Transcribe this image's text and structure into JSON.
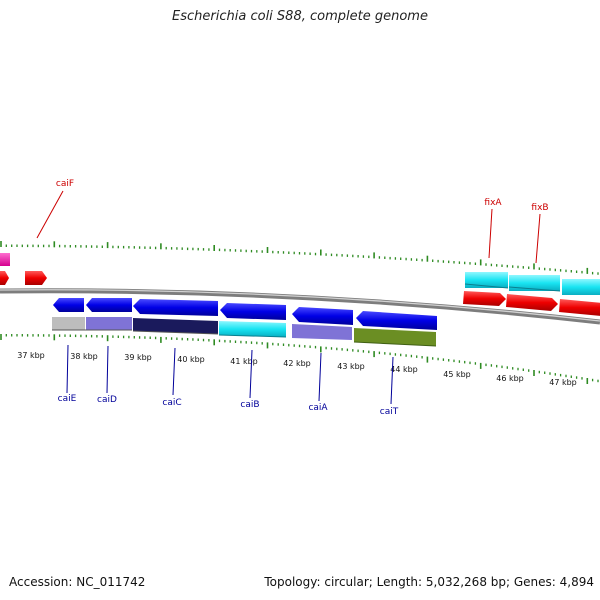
{
  "title": "Escherichia coli S88, complete genome",
  "footer": {
    "accession": "Accession: NC_011742",
    "summary": "Topology: circular; Length: 5,032,268 bp; Genes: 4,894"
  },
  "colors": {
    "forward_label": "#cc0000",
    "reverse_label": "#000099",
    "tick": "#2e8b22",
    "backbone": "#8a8a8a"
  },
  "scale_labels": [
    "37 kbp",
    "38 kbp",
    "39 kbp",
    "40 kbp",
    "41 kbp",
    "42 kbp",
    "43 kbp",
    "44 kbp",
    "45 kbp",
    "46 kbp",
    "47 kbp"
  ],
  "forward_genes": [
    {
      "name": "caiF"
    },
    {
      "name": "fixA"
    },
    {
      "name": "fixB"
    }
  ],
  "reverse_genes": [
    {
      "name": "caiE"
    },
    {
      "name": "caiD"
    },
    {
      "name": "caiC"
    },
    {
      "name": "caiB"
    },
    {
      "name": "caiA"
    },
    {
      "name": "caiT"
    }
  ]
}
